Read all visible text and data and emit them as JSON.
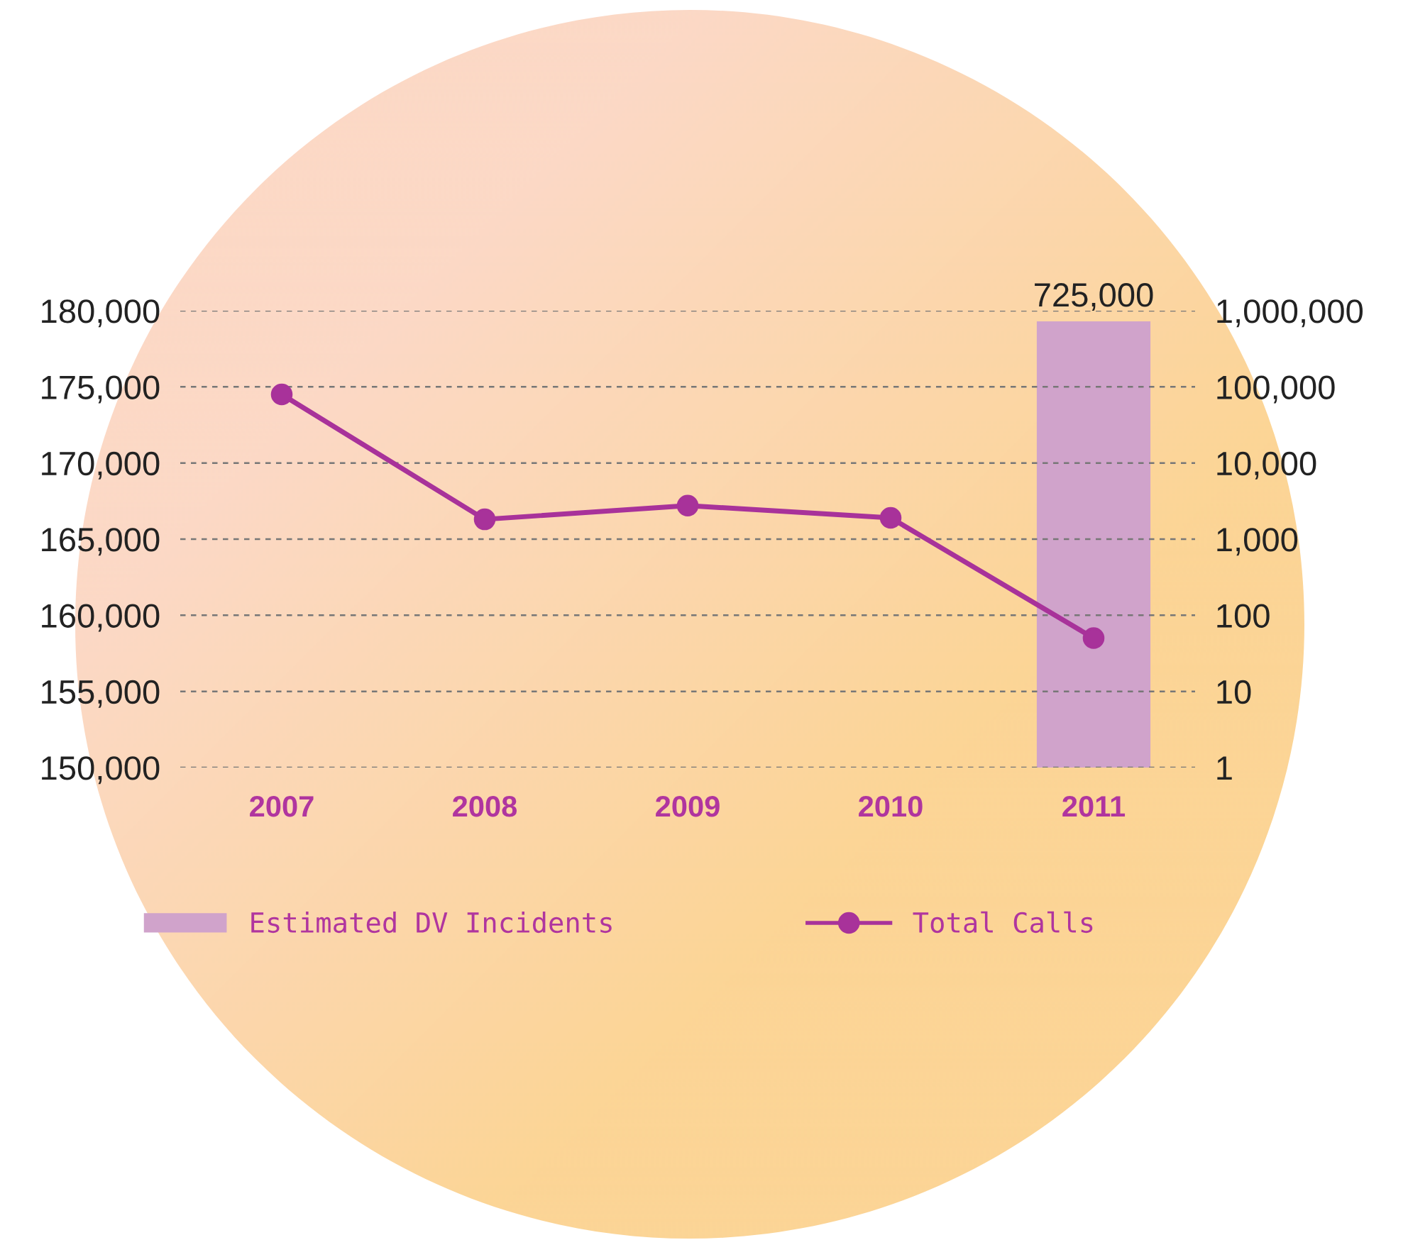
{
  "chart_data": {
    "type": "line",
    "categories": [
      "2007",
      "2008",
      "2009",
      "2010",
      "2011"
    ],
    "series": [
      {
        "name": "Estimated DV Incidents",
        "type": "bar",
        "axis": "y2",
        "color": "#d0a3cb",
        "values": [
          null,
          null,
          null,
          null,
          725000
        ],
        "value_labels": [
          null,
          null,
          null,
          null,
          "725,000"
        ]
      },
      {
        "name": "Total Calls",
        "color": "#a8329a",
        "values": [
          174500,
          166300,
          167200,
          166400,
          158500
        ],
        "marker": "circle",
        "line_style": "solid"
      }
    ],
    "ylim": [
      150000,
      180000
    ],
    "yticks": [
      {
        "value": 150000,
        "label": "150,000"
      },
      {
        "value": 155000,
        "label": "155,000"
      },
      {
        "value": 160000,
        "label": "160,000"
      },
      {
        "value": 165000,
        "label": "165,000"
      },
      {
        "value": 170000,
        "label": "170,000"
      },
      {
        "value": 175000,
        "label": "175,000"
      },
      {
        "value": 180000,
        "label": "180,000"
      }
    ],
    "y2lim": [
      1,
      1000000
    ],
    "y2ticks": [
      1,
      10,
      100,
      {
        "value": 1000,
        "label": "1,000"
      },
      {
        "value": 10000,
        "label": "10,000"
      },
      {
        "value": 100000,
        "label": "100,000"
      },
      {
        "value": 1000000,
        "label": "1,000,000"
      }
    ],
    "log": "y2",
    "grid": "y",
    "legend": "bottom"
  }
}
